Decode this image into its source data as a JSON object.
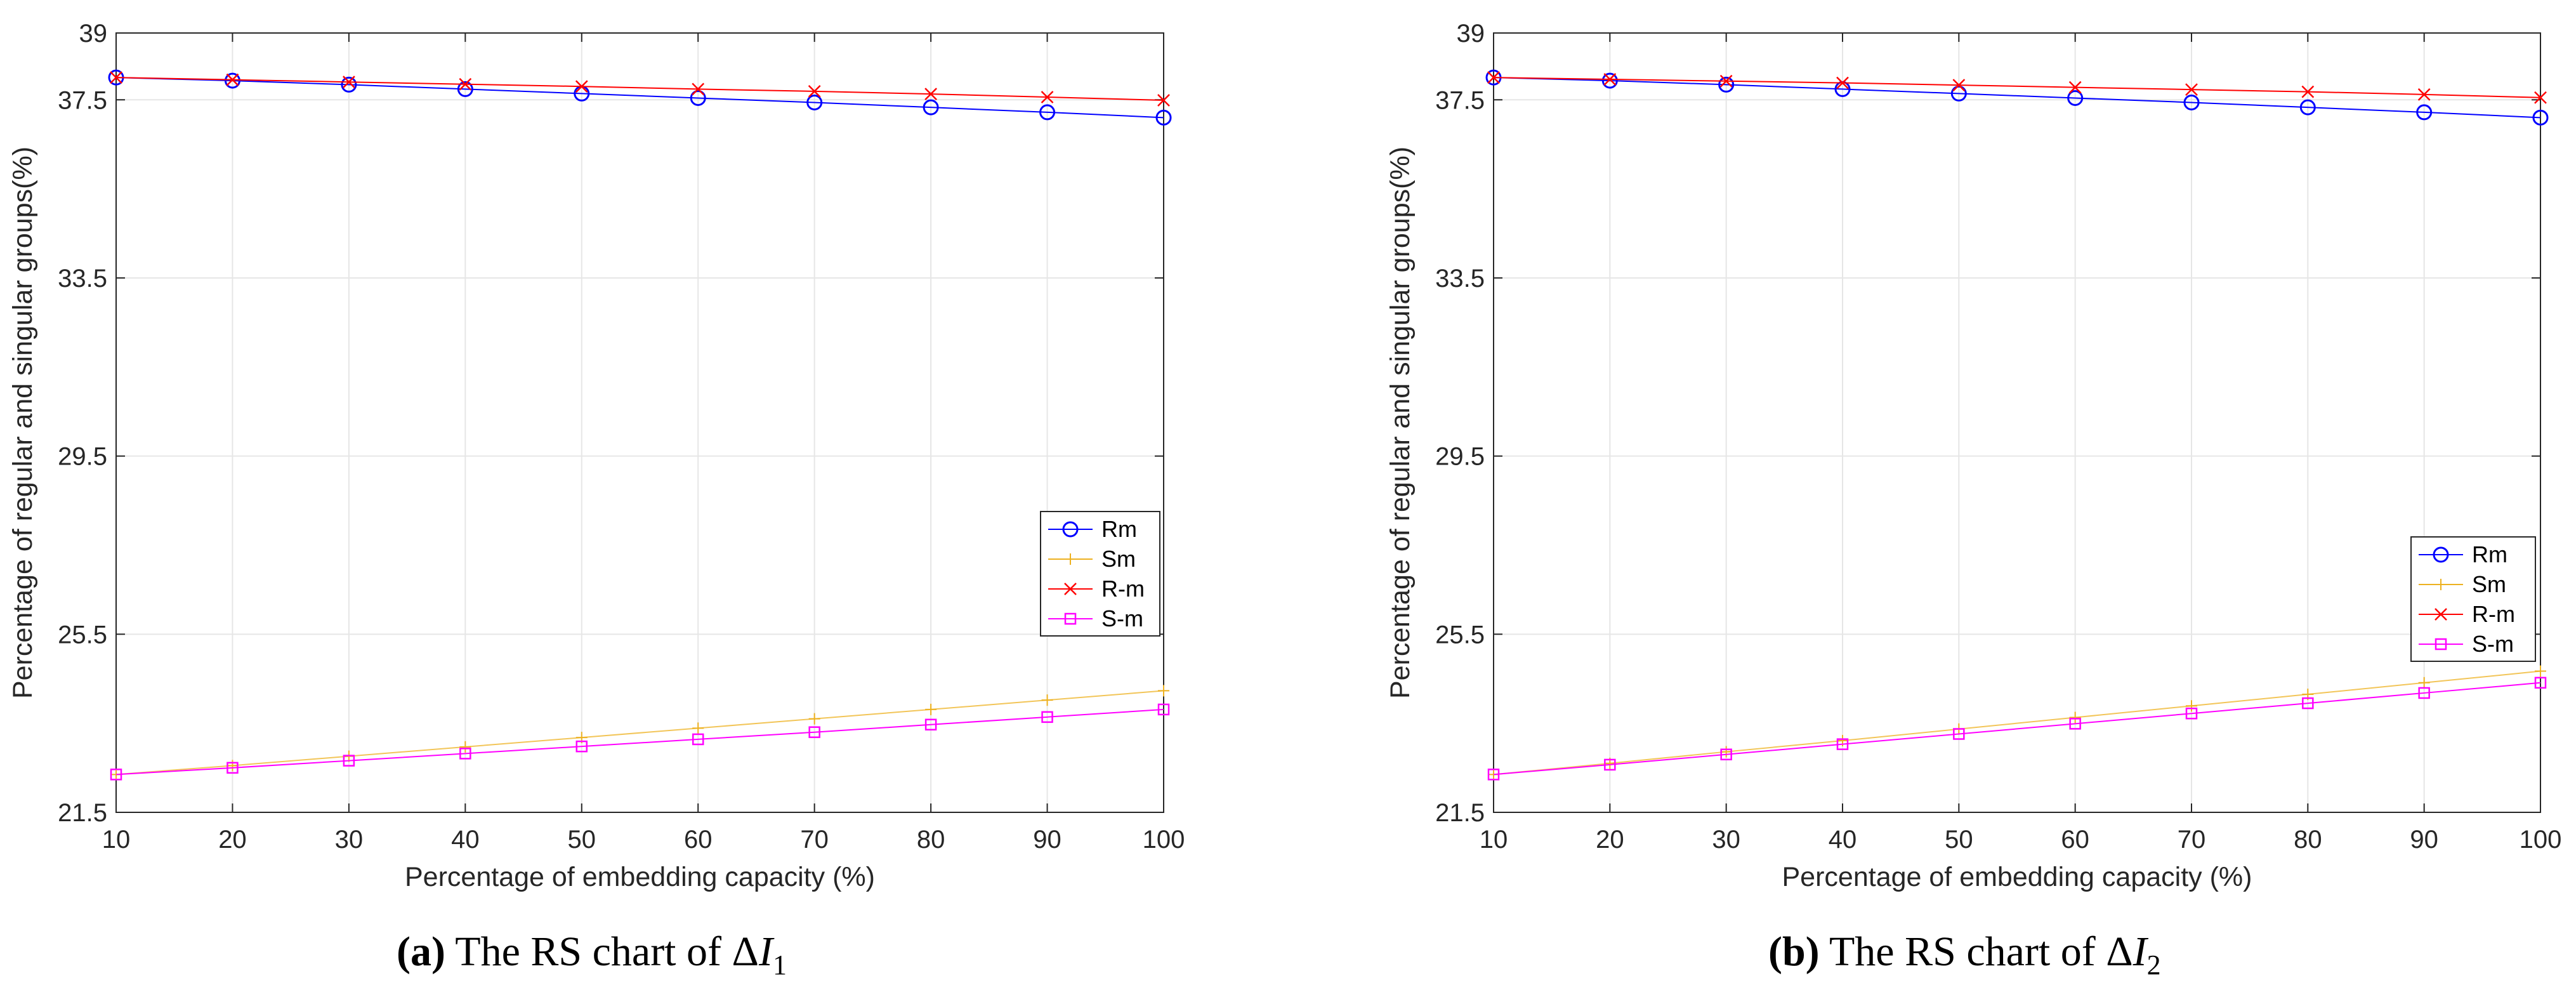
{
  "charts": [
    {
      "id": "a",
      "caption": {
        "label": "(a)",
        "text": "The RS chart of",
        "symbol": "Δ",
        "var": "I",
        "sub": "1"
      },
      "chart_data": {
        "type": "line",
        "title": "",
        "xlabel": "Percentage of embedding capacity (%)",
        "ylabel": "Percentage of regular and singular groups(%)",
        "xlim": [
          10,
          100
        ],
        "ylim": [
          21.5,
          39
        ],
        "grid": true,
        "legend_position": "right-middle",
        "x": [
          10,
          20,
          30,
          40,
          50,
          60,
          70,
          80,
          90,
          100
        ],
        "x_ticks": [
          "10",
          "20",
          "30",
          "40",
          "50",
          "60",
          "70",
          "80",
          "90",
          "100"
        ],
        "y_ticks": [
          "21.5",
          "25.5",
          "29.5",
          "33.5",
          "37.5",
          "39"
        ],
        "series": [
          {
            "name": "Rm",
            "color": "#0000ff",
            "marker": "circle",
            "values": [
              38.0,
              37.93,
              37.84,
              37.74,
              37.64,
              37.54,
              37.44,
              37.33,
              37.22,
              37.1
            ]
          },
          {
            "name": "Sm",
            "color": "#edb120",
            "marker": "plus",
            "values": [
              22.35,
              22.55,
              22.76,
              22.97,
              23.18,
              23.39,
              23.6,
              23.81,
              24.02,
              24.23
            ]
          },
          {
            "name": "R-m",
            "color": "#ff0000",
            "marker": "x",
            "values": [
              38.0,
              37.95,
              37.9,
              37.85,
              37.8,
              37.74,
              37.69,
              37.63,
              37.56,
              37.49
            ]
          },
          {
            "name": "S-m",
            "color": "#ff00ff",
            "marker": "square",
            "values": [
              22.35,
              22.5,
              22.66,
              22.82,
              22.98,
              23.14,
              23.3,
              23.47,
              23.64,
              23.81
            ]
          }
        ]
      }
    },
    {
      "id": "b",
      "caption": {
        "label": "(b)",
        "text": "The RS chart of",
        "symbol": "Δ",
        "var": "I",
        "sub": "2"
      },
      "chart_data": {
        "type": "line",
        "title": "",
        "xlabel": "Percentage of embedding capacity (%)",
        "ylabel": "Percentage of regular and singular groups(%)",
        "xlim": [
          10,
          100
        ],
        "ylim": [
          21.5,
          39
        ],
        "grid": true,
        "legend_position": "lower-right",
        "x": [
          10,
          20,
          30,
          40,
          50,
          60,
          70,
          80,
          90,
          100
        ],
        "x_ticks": [
          "10",
          "20",
          "30",
          "40",
          "50",
          "60",
          "70",
          "80",
          "90",
          "100"
        ],
        "y_ticks": [
          "21.5",
          "25.5",
          "29.5",
          "33.5",
          "37.5",
          "39"
        ],
        "series": [
          {
            "name": "Rm",
            "color": "#0000ff",
            "marker": "circle",
            "values": [
              38.0,
              37.93,
              37.84,
              37.74,
              37.64,
              37.54,
              37.44,
              37.33,
              37.22,
              37.1
            ]
          },
          {
            "name": "Sm",
            "color": "#edb120",
            "marker": "plus",
            "values": [
              22.35,
              22.6,
              22.86,
              23.11,
              23.37,
              23.63,
              23.89,
              24.15,
              24.41,
              24.67
            ]
          },
          {
            "name": "R-m",
            "color": "#ff0000",
            "marker": "x",
            "values": [
              38.0,
              37.96,
              37.92,
              37.88,
              37.83,
              37.78,
              37.73,
              37.68,
              37.62,
              37.55
            ]
          },
          {
            "name": "S-m",
            "color": "#ff00ff",
            "marker": "square",
            "values": [
              22.35,
              22.57,
              22.8,
              23.03,
              23.26,
              23.49,
              23.72,
              23.95,
              24.18,
              24.41
            ]
          }
        ]
      }
    }
  ]
}
